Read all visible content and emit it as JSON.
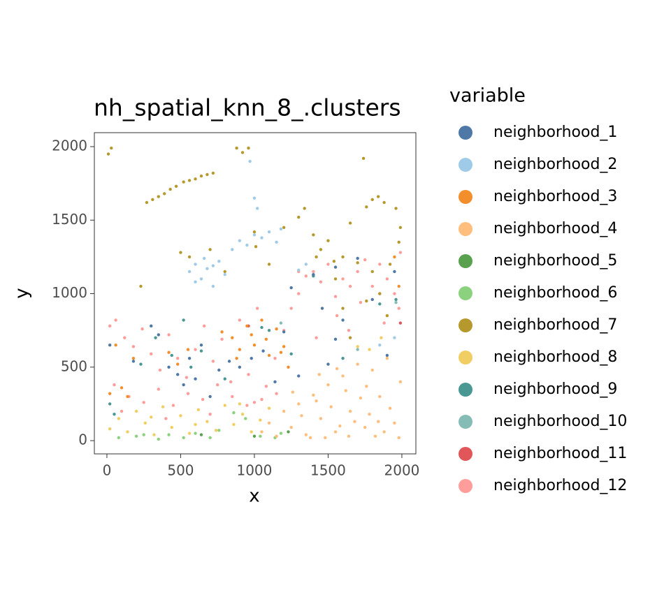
{
  "chart_data": {
    "type": "scatter",
    "title": "nh_spatial_knn_8_.clusters",
    "x_label": "x",
    "y_label": "y",
    "legend_title": "variable",
    "xlim": [
      -85,
      2095
    ],
    "ylim": [
      -90,
      2095
    ],
    "xticks": [
      0,
      500,
      1000,
      1500,
      2000
    ],
    "yticks": [
      0,
      500,
      1000,
      1500,
      2000
    ],
    "series": [
      {
        "name": "neighborhood_1",
        "color": "#4e79a7",
        "x": [
          300,
          350,
          420,
          480,
          520,
          560,
          600,
          640,
          700,
          760,
          830,
          900,
          980,
          1060,
          1140,
          1200,
          1300,
          1400,
          1500,
          1550,
          1600,
          1700,
          1800,
          1900,
          1950,
          20,
          180,
          1460,
          1250,
          1550
        ],
        "y": [
          780,
          720,
          500,
          450,
          380,
          560,
          420,
          650,
          300,
          480,
          540,
          500,
          560,
          610,
          400,
          740,
          440,
          1130,
          520,
          690,
          820,
          1240,
          960,
          580,
          1150,
          650,
          540,
          900,
          1040,
          1180
        ]
      },
      {
        "name": "neighborhood_2",
        "color": "#a0cbe8",
        "x": [
          560,
          600,
          640,
          680,
          720,
          760,
          800,
          600,
          660,
          720,
          850,
          900,
          950,
          1000,
          1050,
          1100,
          1150,
          1180,
          1000,
          1020,
          970,
          1300,
          1350,
          1850,
          1950
        ],
        "y": [
          1150,
          1200,
          1100,
          1170,
          1050,
          1220,
          1130,
          1080,
          1240,
          1190,
          1300,
          1360,
          1330,
          1400,
          1380,
          1420,
          1350,
          1440,
          1650,
          1580,
          1900,
          1160,
          1200,
          650,
          700
        ]
      },
      {
        "name": "neighborhood_3",
        "color": "#f28e2b",
        "x": [
          850,
          900,
          950,
          1000,
          1050,
          1100,
          1150,
          1200,
          880,
          980,
          1080,
          1180,
          20,
          60,
          100,
          140,
          180,
          420,
          480,
          550,
          1950,
          1980,
          780,
          1230
        ],
        "y": [
          700,
          620,
          780,
          650,
          820,
          580,
          760,
          640,
          560,
          720,
          690,
          600,
          320,
          650,
          360,
          300,
          560,
          600,
          520,
          620,
          1250,
          1050,
          740,
          500
        ]
      },
      {
        "name": "neighborhood_4",
        "color": "#ffbe7d",
        "x": [
          1050,
          1100,
          1150,
          1200,
          1250,
          1300,
          1350,
          1400,
          1450,
          1500,
          1550,
          1600,
          1650,
          1700,
          1750,
          1800,
          1850,
          1900,
          1950,
          1990,
          1320,
          1420,
          1520,
          1620,
          1720,
          1820,
          1920,
          1380,
          1480,
          1580,
          1680,
          1780,
          1880,
          1980,
          1260,
          1440,
          1640,
          1840,
          1560,
          1760
        ],
        "y": [
          60,
          120,
          30,
          200,
          90,
          250,
          40,
          310,
          150,
          380,
          60,
          440,
          200,
          520,
          90,
          480,
          300,
          560,
          120,
          400,
          170,
          270,
          230,
          340,
          290,
          30,
          220,
          20,
          20,
          100,
          130,
          180,
          60,
          20,
          330,
          450,
          30,
          130,
          490,
          370
        ]
      },
      {
        "name": "neighborhood_5",
        "color": "#59a14f",
        "x": [
          1000,
          1230,
          640
        ],
        "y": [
          30,
          60,
          40
        ]
      },
      {
        "name": "neighborhood_6",
        "color": "#8cd17d",
        "x": [
          80,
          200,
          350,
          420,
          520,
          600,
          700,
          860,
          940,
          1040,
          1140,
          1180,
          250,
          760
        ],
        "y": [
          20,
          30,
          10,
          40,
          20,
          50,
          20,
          190,
          150,
          30,
          20,
          50,
          40,
          70
        ]
      },
      {
        "name": "neighborhood_7",
        "color": "#b6992d",
        "x": [
          10,
          30,
          270,
          310,
          350,
          390,
          430,
          470,
          520,
          560,
          600,
          640,
          680,
          720,
          880,
          920,
          960,
          1000,
          1010,
          1200,
          1300,
          1340,
          1400,
          1450,
          1500,
          1540,
          1600,
          1650,
          1700,
          1740,
          1760,
          1800,
          1840,
          1880,
          1920,
          1960,
          1990,
          500,
          560,
          230,
          700,
          800,
          1100,
          1600,
          1850,
          1550,
          1900,
          1420,
          1650,
          1800,
          1980,
          1760
        ],
        "y": [
          1950,
          1990,
          1620,
          1640,
          1660,
          1680,
          1710,
          1730,
          1760,
          1770,
          1780,
          1800,
          1810,
          1820,
          1990,
          1960,
          1990,
          1420,
          1320,
          1450,
          1520,
          1580,
          1400,
          1300,
          1360,
          1220,
          1250,
          1480,
          1210,
          1920,
          1590,
          1640,
          1660,
          1620,
          1200,
          1580,
          1450,
          1280,
          1250,
          1050,
          1300,
          1150,
          1200,
          900,
          1000,
          1100,
          850,
          1250,
          700,
          1150,
          1350,
          950
        ]
      },
      {
        "name": "neighborhood_8",
        "color": "#f1ce63",
        "x": [
          20,
          80,
          140,
          200,
          260,
          320,
          380,
          440,
          500,
          560,
          620,
          680,
          740,
          800,
          860,
          920,
          980,
          1040,
          1100,
          1700,
          1780,
          1860,
          300,
          600,
          900
        ],
        "y": [
          80,
          150,
          60,
          200,
          120,
          40,
          230,
          90,
          170,
          50,
          210,
          130,
          70,
          240,
          110,
          180,
          60,
          140,
          220,
          640,
          620,
          700,
          160,
          110,
          250
        ]
      },
      {
        "name": "neighborhood_9",
        "color": "#499894",
        "x": [
          20,
          50,
          230,
          330,
          440,
          520,
          570,
          640,
          800,
          1050,
          1250,
          1400,
          1850,
          1960,
          1600,
          1100
        ],
        "y": [
          250,
          180,
          520,
          700,
          580,
          820,
          500,
          610,
          420,
          770,
          590,
          1120,
          930,
          960,
          560,
          750
        ]
      },
      {
        "name": "neighborhood_10",
        "color": "#86bcb6",
        "x": [
          1180,
          1700,
          1960
        ],
        "y": [
          800,
          620,
          940
        ]
      },
      {
        "name": "neighborhood_11",
        "color": "#e15759",
        "x": [
          960,
          1990,
          1850
        ],
        "y": [
          780,
          800,
          1000
        ]
      },
      {
        "name": "neighborhood_12",
        "color": "#ff9d9a",
        "x": [
          20,
          60,
          120,
          180,
          240,
          300,
          360,
          420,
          480,
          540,
          600,
          660,
          720,
          780,
          840,
          900,
          960,
          1020,
          1080,
          1140,
          1200,
          50,
          150,
          250,
          350,
          450,
          550,
          650,
          750,
          850,
          950,
          1050,
          1150,
          1250,
          1300,
          1350,
          1400,
          1450,
          1500,
          1550,
          1600,
          1650,
          1700,
          1750,
          1800,
          1850,
          1900,
          1950,
          1990,
          1420,
          1560,
          1720,
          1880,
          1300,
          1640,
          1980,
          100,
          400,
          700,
          1000
        ],
        "y": [
          780,
          820,
          700,
          640,
          760,
          590,
          480,
          720,
          560,
          430,
          620,
          780,
          540,
          690,
          400,
          820,
          450,
          900,
          370,
          560,
          750,
          380,
          300,
          260,
          350,
          240,
          320,
          280,
          380,
          300,
          240,
          280,
          320,
          900,
          1000,
          1120,
          1150,
          1080,
          1200,
          980,
          1100,
          1050,
          1150,
          1230,
          1050,
          1200,
          1100,
          1000,
          1280,
          700,
          850,
          940,
          800,
          1150,
          750,
          900,
          200,
          150,
          180,
          260
        ]
      }
    ]
  }
}
